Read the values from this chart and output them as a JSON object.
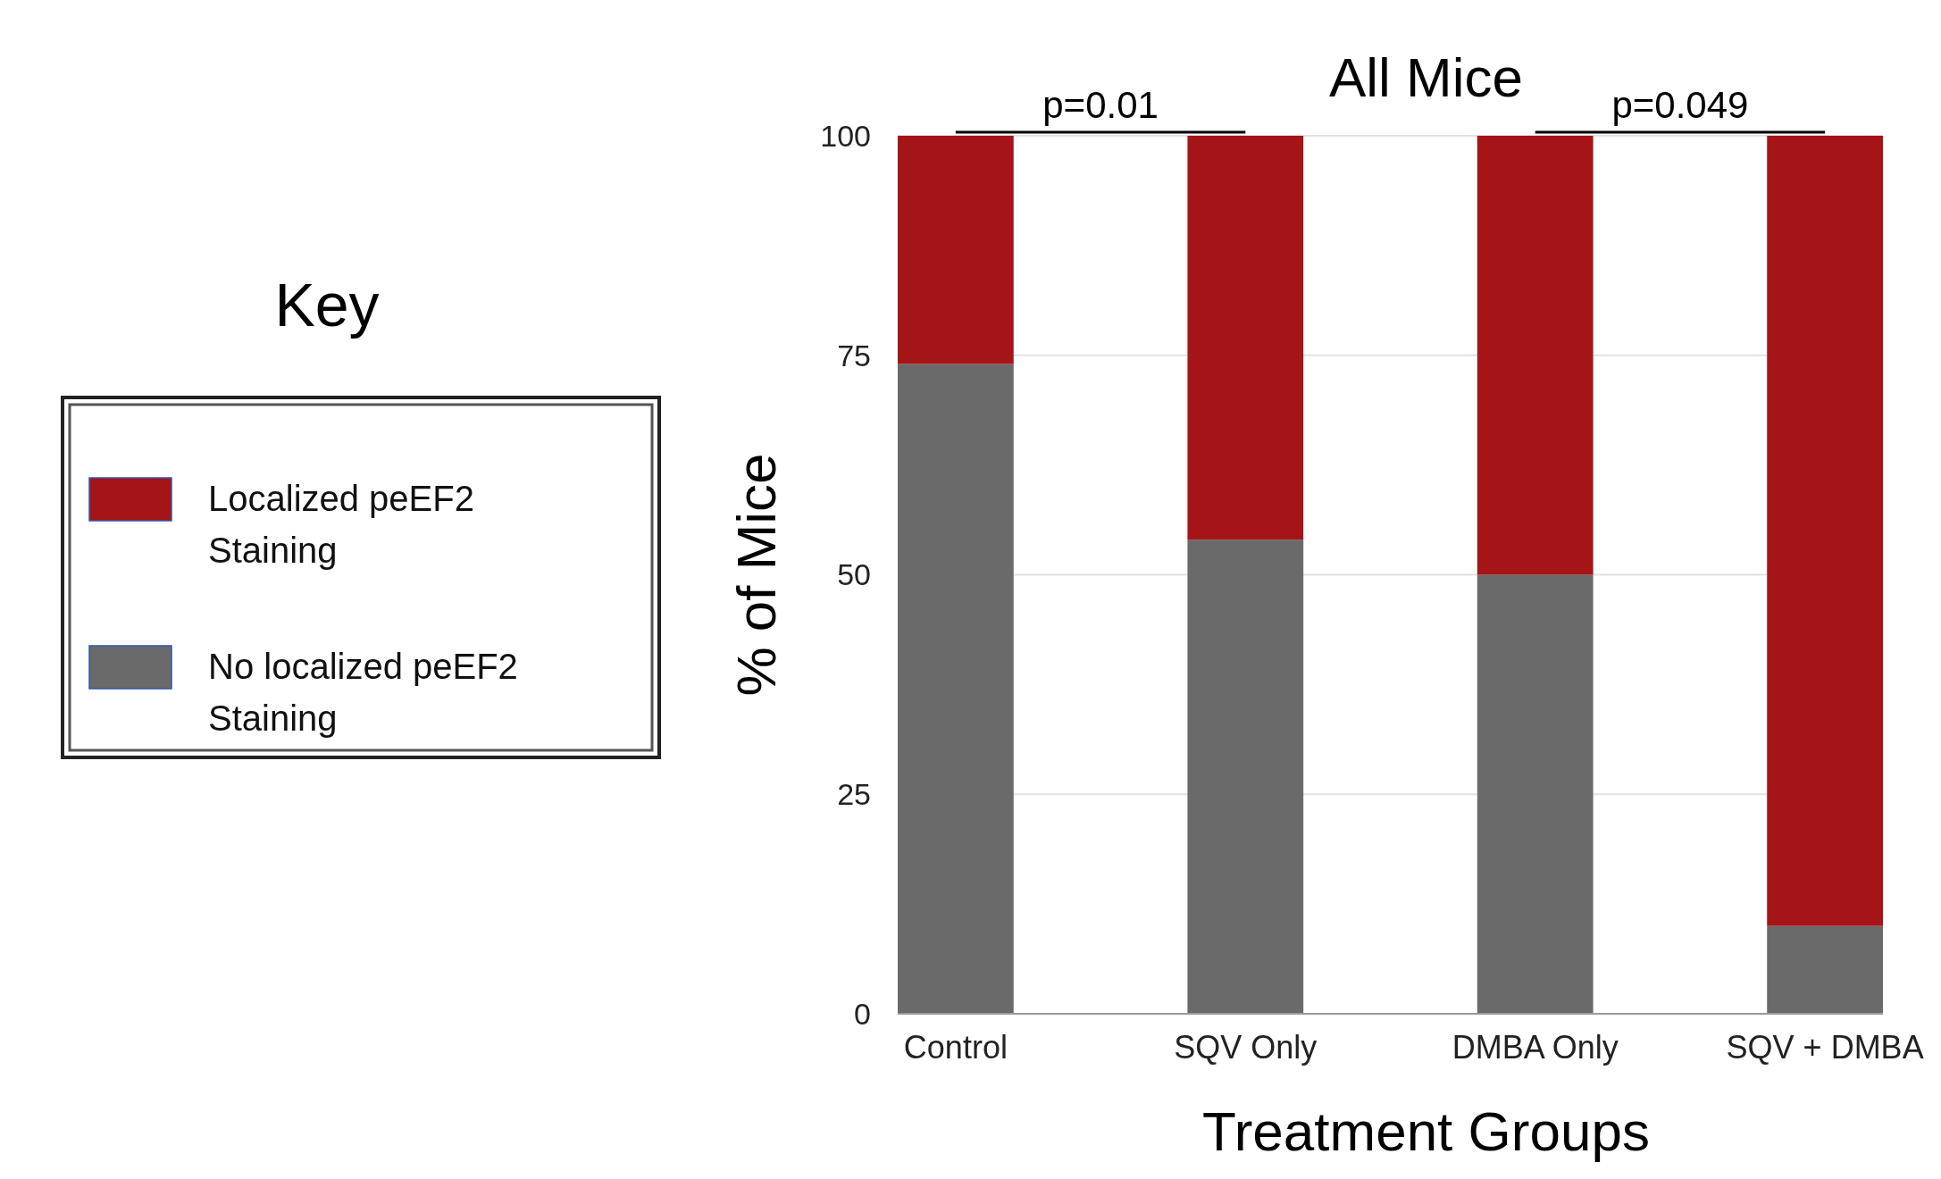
{
  "chart_data": {
    "type": "bar",
    "title": "All Mice",
    "xlabel": "Treatment Groups",
    "ylabel": "% of Mice",
    "legend_title": "Key",
    "stacked": true,
    "categories": [
      "Control",
      "SQV Only",
      "DMBA Only",
      "SQV + DMBA"
    ],
    "series": [
      {
        "name": "No localized peEF2 Staining",
        "color": "#6a6a6a",
        "values": [
          74,
          54,
          50,
          10
        ]
      },
      {
        "name": "Localized peEF2 Staining",
        "color": "#a51517",
        "values": [
          26,
          46,
          50,
          90
        ]
      }
    ],
    "ylim": [
      0,
      100
    ],
    "yticks": [
      0,
      25,
      50,
      75,
      100
    ],
    "grid": "y",
    "legend": "left",
    "annotations": [
      "p=0.01",
      "p=0.049"
    ]
  }
}
